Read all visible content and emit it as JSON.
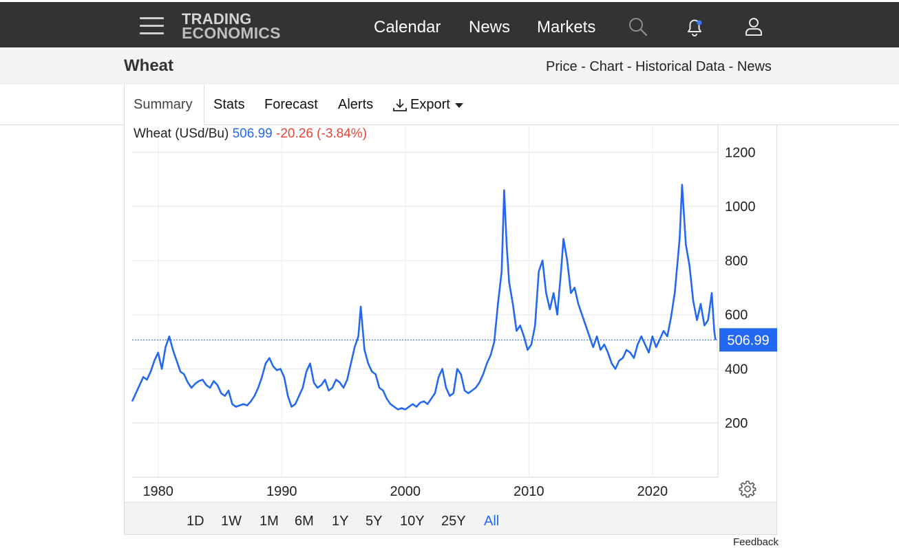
{
  "header": {
    "logo_line1": "TRADING",
    "logo_line2": "ECONOMICS",
    "nav": [
      "Calendar",
      "News",
      "Markets"
    ],
    "icons": [
      "menu-icon",
      "search-icon",
      "bell-icon",
      "user-icon"
    ]
  },
  "subheader": {
    "title": "Wheat",
    "links": [
      "Price",
      "Chart",
      "Historical Data",
      "News"
    ],
    "separator": " - "
  },
  "tabs": {
    "items": [
      "Summary",
      "Stats",
      "Forecast",
      "Alerts",
      "Export"
    ],
    "active": "Summary"
  },
  "legend": {
    "label": "Wheat (USd/Bu)",
    "value": "506.99",
    "change": "-20.26 (-3.84%)"
  },
  "range_buttons": [
    "1D",
    "1W",
    "1M",
    "6M",
    "1Y",
    "5Y",
    "10Y",
    "25Y",
    "All"
  ],
  "range_active": "All",
  "feedback_label": "Feedback",
  "colors": {
    "line": "#2468f2",
    "change_negative": "#e8443a",
    "accent": "#2468f2",
    "header_bg": "#333333"
  },
  "chart_data": {
    "type": "line",
    "title": "Wheat (USd/Bu)",
    "xlabel": "",
    "ylabel": "",
    "xlim": [
      1977.9,
      2025.3
    ],
    "ylim": [
      0,
      1300
    ],
    "x_ticks": [
      1980,
      1990,
      2000,
      2010,
      2020
    ],
    "y_ticks": [
      200,
      400,
      600,
      800,
      1000,
      1200
    ],
    "y_axis_side": "right",
    "grid": true,
    "last_value": 506.99,
    "last_value_label": "506.99",
    "series": [
      {
        "x": [
          1977.9,
          1978.2,
          1978.5,
          1978.8,
          1979.1,
          1979.4,
          1979.7,
          1980.0,
          1980.3,
          1980.6,
          1980.9,
          1981.2,
          1981.5,
          1981.8,
          1982.1,
          1982.4,
          1982.7,
          1983.0,
          1983.3,
          1983.6,
          1983.9,
          1984.2,
          1984.5,
          1984.8,
          1985.1,
          1985.4,
          1985.7,
          1986.0,
          1986.3,
          1986.6,
          1986.9,
          1987.2,
          1987.5,
          1987.8,
          1988.1,
          1988.4,
          1988.7,
          1989.0,
          1989.3,
          1989.6,
          1989.9,
          1990.2,
          1990.5,
          1990.8,
          1991.1,
          1991.4,
          1991.7,
          1992.0,
          1992.3,
          1992.6,
          1992.9,
          1993.2,
          1993.5,
          1993.8,
          1994.1,
          1994.4,
          1994.7,
          1995.0,
          1995.3,
          1995.6,
          1995.9,
          1996.2,
          1996.4,
          1996.7,
          1997.0,
          1997.3,
          1997.6,
          1997.9,
          1998.2,
          1998.5,
          1998.8,
          1999.1,
          1999.4,
          1999.7,
          2000.0,
          2000.3,
          2000.6,
          2000.9,
          2001.2,
          2001.5,
          2001.8,
          2002.1,
          2002.4,
          2002.7,
          2003.0,
          2003.3,
          2003.6,
          2003.9,
          2004.2,
          2004.5,
          2004.8,
          2005.1,
          2005.4,
          2005.7,
          2006.0,
          2006.3,
          2006.6,
          2006.9,
          2007.2,
          2007.5,
          2007.8,
          2008.0,
          2008.2,
          2008.4,
          2008.7,
          2009.0,
          2009.3,
          2009.6,
          2009.9,
          2010.2,
          2010.5,
          2010.8,
          2011.1,
          2011.4,
          2011.7,
          2012.0,
          2012.3,
          2012.6,
          2012.8,
          2013.1,
          2013.4,
          2013.7,
          2014.0,
          2014.3,
          2014.6,
          2014.9,
          2015.2,
          2015.5,
          2015.8,
          2016.1,
          2016.4,
          2016.7,
          2017.0,
          2017.3,
          2017.6,
          2017.9,
          2018.2,
          2018.5,
          2018.8,
          2019.1,
          2019.4,
          2019.7,
          2020.0,
          2020.3,
          2020.6,
          2020.9,
          2021.2,
          2021.5,
          2021.8,
          2022.0,
          2022.2,
          2022.4,
          2022.7,
          2023.0,
          2023.3,
          2023.6,
          2023.9,
          2024.2,
          2024.5,
          2024.8,
          2025.0,
          2025.1
        ],
        "y": [
          280,
          310,
          340,
          370,
          360,
          390,
          430,
          460,
          400,
          480,
          520,
          470,
          430,
          390,
          380,
          350,
          330,
          345,
          355,
          360,
          340,
          330,
          355,
          340,
          310,
          300,
          320,
          270,
          260,
          265,
          270,
          265,
          280,
          300,
          330,
          370,
          420,
          440,
          410,
          395,
          400,
          370,
          300,
          260,
          270,
          300,
          330,
          390,
          420,
          350,
          330,
          340,
          360,
          320,
          330,
          360,
          350,
          330,
          360,
          420,
          480,
          520,
          630,
          470,
          420,
          390,
          380,
          330,
          320,
          290,
          270,
          260,
          250,
          255,
          250,
          260,
          270,
          260,
          275,
          280,
          270,
          290,
          310,
          370,
          400,
          330,
          300,
          310,
          400,
          380,
          320,
          310,
          320,
          330,
          350,
          380,
          420,
          450,
          500,
          640,
          760,
          1060,
          860,
          720,
          640,
          540,
          560,
          520,
          470,
          490,
          560,
          760,
          800,
          680,
          620,
          680,
          600,
          760,
          880,
          800,
          680,
          700,
          640,
          600,
          560,
          520,
          480,
          520,
          470,
          490,
          460,
          420,
          400,
          430,
          440,
          470,
          460,
          440,
          490,
          520,
          490,
          460,
          520,
          480,
          510,
          540,
          520,
          590,
          680,
          780,
          880,
          1080,
          860,
          780,
          650,
          580,
          640,
          560,
          580,
          680,
          540,
          506.99
        ]
      }
    ]
  }
}
